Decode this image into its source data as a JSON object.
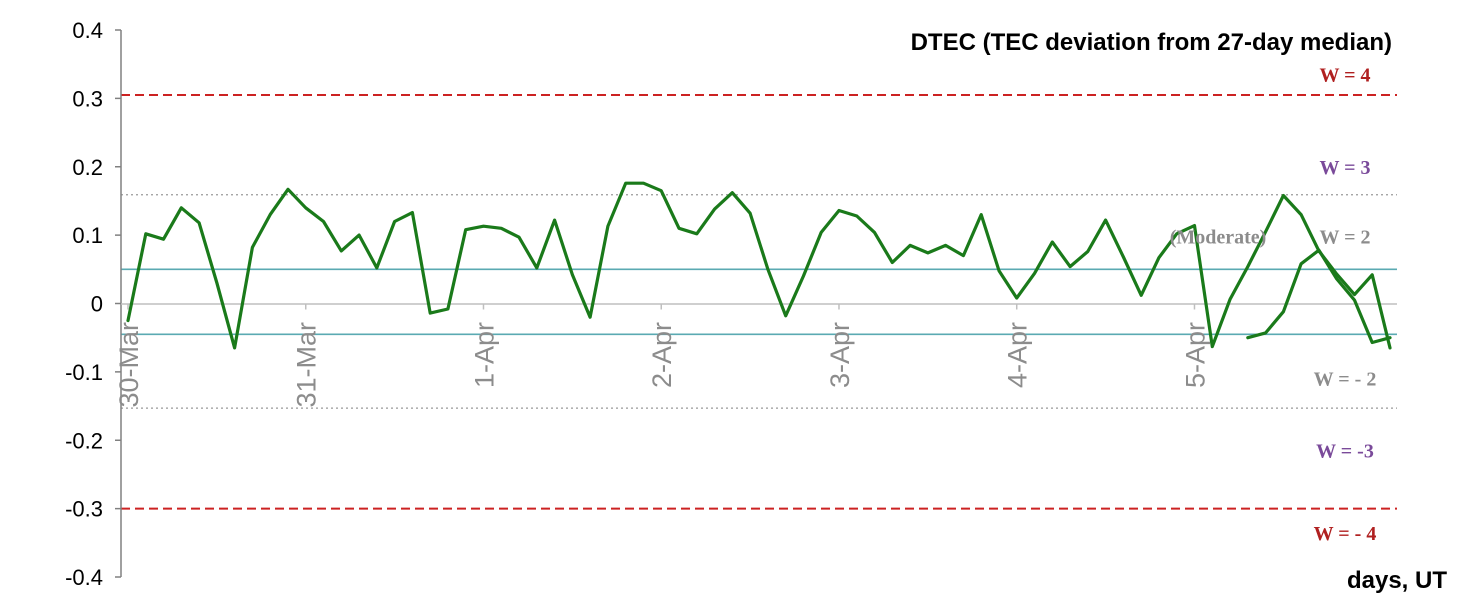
{
  "chart_data": {
    "type": "line",
    "title": "DTEC (TEC deviation from 27-day median)",
    "xlabel": "days, UT",
    "ylabel": "",
    "ylim": [
      -0.4,
      0.4
    ],
    "yticks": [
      "0.4",
      "0.3",
      "0.2",
      "0.1",
      "0",
      "-0.1",
      "-0.2",
      "-0.3",
      "-0.4"
    ],
    "ytick_values": [
      0.4,
      0.3,
      0.2,
      0.1,
      0,
      -0.1,
      -0.2,
      -0.3,
      -0.4
    ],
    "xlim": [
      0,
      7.1
    ],
    "x_categories": [
      "30-Mar",
      "31-Mar",
      "1-Apr",
      "2-Apr",
      "3-Apr",
      "4-Apr",
      "5-Apr"
    ],
    "x_category_positions": [
      0,
      1,
      2,
      3,
      4,
      5,
      6
    ],
    "grid": false,
    "series_color": "#1a7a1a",
    "series": [
      {
        "name": "",
        "x": [
          0.0,
          0.1,
          0.2,
          0.3,
          0.4,
          0.5,
          0.6,
          0.7,
          0.8,
          0.9,
          1.0,
          1.1,
          1.2,
          1.3,
          1.4,
          1.5,
          1.6,
          1.7,
          1.8,
          1.9,
          2.0,
          2.1,
          2.2,
          2.3,
          2.4,
          2.5,
          2.6,
          2.7,
          2.8,
          2.9,
          3.0,
          3.1,
          3.2,
          3.3,
          3.4,
          3.5,
          3.6,
          3.7,
          3.8,
          3.9,
          4.0,
          4.1,
          4.2,
          4.3,
          4.4,
          4.5,
          4.6,
          4.7,
          4.8,
          4.9,
          5.0,
          5.1,
          5.2,
          5.3,
          5.4,
          5.5,
          5.6,
          5.7,
          5.8,
          5.9,
          6.0,
          6.1,
          6.2,
          6.3,
          6.4,
          6.5,
          6.6,
          6.7,
          6.8,
          6.9,
          7.0,
          7.1
        ],
        "values": [
          -0.025,
          0.102,
          0.094,
          0.14,
          0.118,
          0.03,
          -0.065,
          0.082,
          0.13,
          0.167,
          0.14,
          0.12,
          0.077,
          0.1,
          0.052,
          0.12,
          0.133,
          -0.014,
          -0.008,
          0.108,
          0.113,
          0.11,
          0.097,
          0.052,
          0.122,
          0.042,
          -0.02,
          0.113,
          0.176,
          0.176,
          0.165,
          0.11,
          0.102,
          0.138,
          0.162,
          0.132,
          0.05,
          -0.018,
          0.04,
          0.104,
          0.136,
          0.128,
          0.104,
          0.06,
          0.085,
          0.074,
          0.085,
          0.07,
          0.13,
          0.048,
          0.008,
          0.044,
          0.09,
          0.054,
          0.076,
          0.122,
          0.068,
          0.012,
          0.067,
          0.102,
          0.114,
          -0.063,
          0.006,
          0.054,
          0.105,
          0.158,
          0.13,
          0.077,
          0.043,
          0.013,
          0.042,
          -0.065
        ]
      },
      {
        "name": "",
        "x": [
          6.3,
          6.4,
          6.5,
          6.6,
          6.7,
          6.8,
          6.9,
          7.0,
          7.1
        ],
        "values": [
          -0.05,
          -0.043,
          -0.012,
          0.058,
          0.078,
          0.036,
          0.005,
          -0.057,
          -0.05
        ]
      }
    ],
    "reference_lines": [
      {
        "y": 0.305,
        "style": "dashed",
        "color": "#cc2222"
      },
      {
        "y": 0.159,
        "style": "dotted",
        "color": "#999999"
      },
      {
        "y": 0.05,
        "style": "solid",
        "color": "#5aaab2"
      },
      {
        "y": -0.045,
        "style": "solid",
        "color": "#5aaab2"
      },
      {
        "y": -0.153,
        "style": "dotted",
        "color": "#999999"
      },
      {
        "y": -0.3,
        "style": "dashed",
        "color": "#cc2222"
      }
    ],
    "annotations": [
      {
        "text": "W = 4",
        "y": 0.335,
        "color": "#b02020"
      },
      {
        "text": "W = 3",
        "y": 0.2,
        "color": "#7a4a9a"
      },
      {
        "text": "W = 2",
        "y": 0.098,
        "color": "#8c8c8c"
      },
      {
        "text": "(Moderate)",
        "y": 0.098,
        "color": "#8c8c8c"
      },
      {
        "text": "W = - 2",
        "y": -0.11,
        "color": "#8c8c8c"
      },
      {
        "text": "W = -3",
        "y": -0.215,
        "color": "#7a4a9a"
      },
      {
        "text": "W = - 4",
        "y": -0.336,
        "color": "#b02020"
      }
    ]
  }
}
